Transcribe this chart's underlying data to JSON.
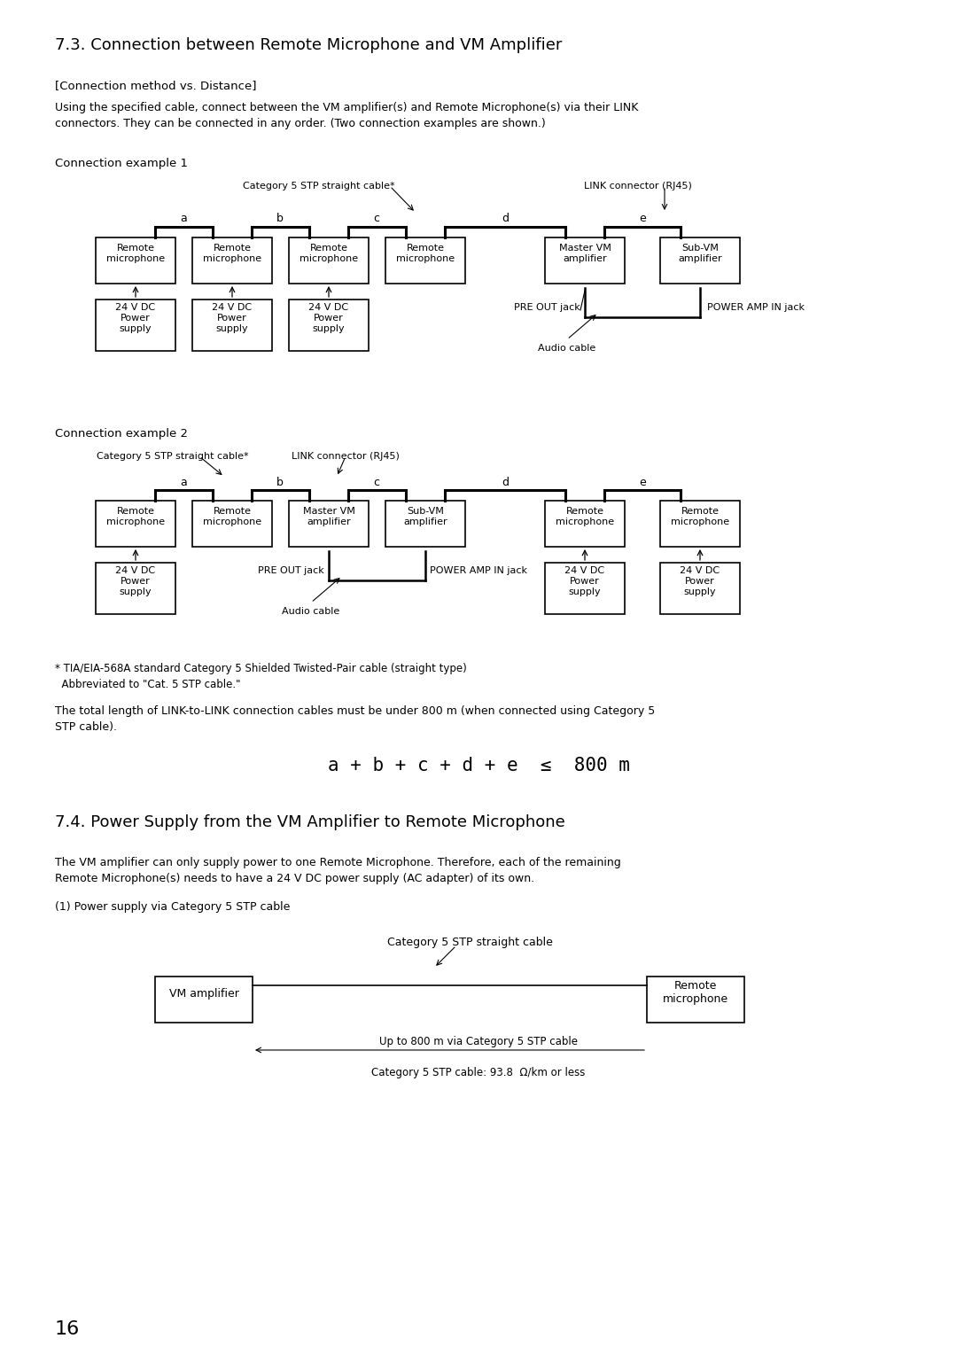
{
  "title_73": "7.3. Connection between Remote Microphone and VM Amplifier",
  "subtitle_73": "[Connection method vs. Distance]",
  "body_73_line1": "Using the specified cable, connect between the VM amplifier(s) and Remote Microphone(s) via their LINK",
  "body_73_line2": "connectors. They can be connected in any order. (Two connection examples are shown.)",
  "conn_ex1": "Connection example 1",
  "conn_ex2": "Connection example 2",
  "cat5_label": "Category 5 STP straight cable*",
  "link_label": "LINK connector (RJ45)",
  "pre_out": "PRE OUT jack",
  "power_amp_in": "POWER AMP IN jack",
  "audio_cable": "Audio cable",
  "footnote1": "* TIA/EIA-568A standard Category 5 Shielded Twisted-Pair cable (straight type)",
  "footnote2": "  Abbreviated to \"Cat. 5 STP cable.\"",
  "total_length_line1": "The total length of LINK-to-LINK connection cables must be under 800 m (when connected using Category 5",
  "total_length_line2": "STP cable).",
  "formula": "a + b + c + d + e  ≤  800 m",
  "title_74": "7.4. Power Supply from the VM Amplifier to Remote Microphone",
  "body_74_line1": "The VM amplifier can only supply power to one Remote Microphone. Therefore, each of the remaining",
  "body_74_line2": "Remote Microphone(s) needs to have a 24 V DC power supply (AC adapter) of its own.",
  "power_via": "(1) Power supply via Category 5 STP cable",
  "cat5_straight": "Category 5 STP straight cable",
  "up_to_800": "Up to 800 m via Category 5 STP cable",
  "cat5_spec": "Category 5 STP cable: 93.8  Ω/km or less",
  "page_num": "16",
  "labels_ex1": [
    "a",
    "b",
    "c",
    "d",
    "e"
  ],
  "labels_ex2": [
    "a",
    "b",
    "c",
    "d",
    "e"
  ],
  "box_labels_ex1": [
    "Remote\nmicrophone",
    "Remote\nmicrophone",
    "Remote\nmicrophone",
    "Remote\nmicrophone",
    "Master VM\namplifier",
    "Sub-VM\namplifier"
  ],
  "box_labels_ex2": [
    "Remote\nmicrophone",
    "Remote\nmicrophone",
    "Master VM\namplifier",
    "Sub-VM\namplifier",
    "Remote\nmicrophone",
    "Remote\nmicrophone"
  ],
  "ps_label": "24 V DC\nPower\nsupply",
  "vm_amp_label": "VM amplifier",
  "remote_mic_label": "Remote\nmicrophone"
}
